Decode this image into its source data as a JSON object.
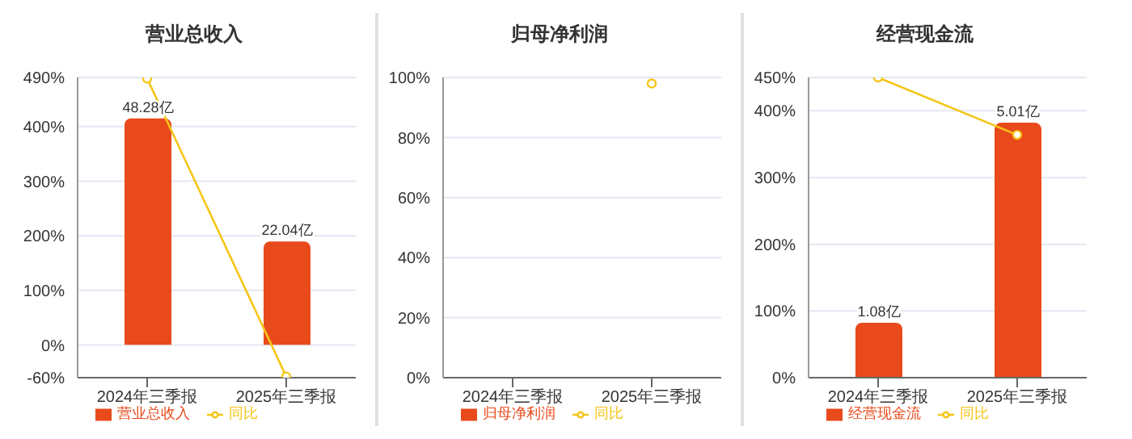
{
  "chart_data": [
    {
      "type": "bar",
      "title": "营业总收入",
      "categories": [
        "2024年三季报",
        "2025年三季报"
      ],
      "series": [
        {
          "name": "营业总收入",
          "color": "#e84a1b",
          "axis": "y2",
          "values": [
            48.28,
            22.04
          ],
          "value_labels": [
            "48.28亿",
            "22.04亿"
          ]
        },
        {
          "name": "同比",
          "type": "line",
          "color": "#f5c518",
          "values": [
            488,
            -58
          ]
        }
      ],
      "ylim": [
        -60,
        490
      ],
      "yticks": [
        {
          "value": -60,
          "label": "-60%"
        },
        {
          "value": 0,
          "label": "0%"
        },
        {
          "value": 100,
          "label": "100%"
        },
        {
          "value": 200,
          "label": "200%"
        },
        {
          "value": 300,
          "label": "300%"
        },
        {
          "value": 400,
          "label": "400%"
        },
        {
          "value": 490,
          "label": "490%"
        }
      ],
      "y2lim": [
        -7,
        57
      ],
      "grid": "y",
      "legend": "bottom",
      "marker": "circle"
    },
    {
      "type": "bar",
      "title": "归母净利润",
      "categories": [
        "2024年三季报",
        "2025年三季报"
      ],
      "series": [
        {
          "name": "归母净利润",
          "color": "#e84a1b",
          "axis": "y2",
          "values": [
            null,
            null
          ]
        },
        {
          "name": "同比",
          "type": "line",
          "color": "#f5c518",
          "values": [
            null,
            98
          ]
        }
      ],
      "ylim": [
        0,
        100
      ],
      "yticks": [
        {
          "value": 0,
          "label": "0%"
        },
        {
          "value": 20,
          "label": "20%"
        },
        {
          "value": 40,
          "label": "40%"
        },
        {
          "value": 60,
          "label": "60%"
        },
        {
          "value": 80,
          "label": "80%"
        },
        {
          "value": 100,
          "label": "100%"
        }
      ],
      "grid": "y",
      "legend": "bottom",
      "marker": "circle"
    },
    {
      "type": "bar",
      "title": "经营现金流",
      "categories": [
        "2024年三季报",
        "2025年三季报"
      ],
      "series": [
        {
          "name": "经营现金流",
          "color": "#e84a1b",
          "axis": "y2",
          "values": [
            1.08,
            5.01
          ],
          "value_labels": [
            "1.08亿",
            "5.01亿"
          ]
        },
        {
          "name": "同比",
          "type": "line",
          "color": "#f5c518",
          "values": [
            450,
            364
          ]
        }
      ],
      "ylim": [
        0,
        450
      ],
      "yticks": [
        {
          "value": 0,
          "label": "0%"
        },
        {
          "value": 100,
          "label": "100%"
        },
        {
          "value": 200,
          "label": "200%"
        },
        {
          "value": 300,
          "label": "300%"
        },
        {
          "value": 400,
          "label": "400%"
        },
        {
          "value": 450,
          "label": "450%"
        }
      ],
      "y2lim": [
        0,
        5.9
      ],
      "grid": "y",
      "legend": "bottom",
      "marker": "circle"
    }
  ]
}
